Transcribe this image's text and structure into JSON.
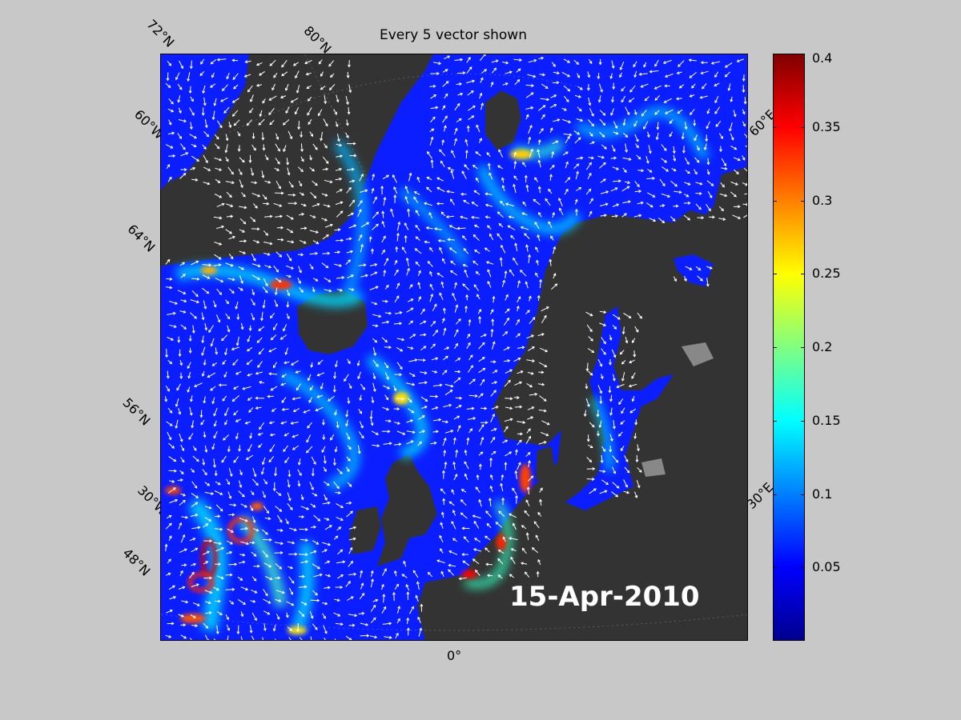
{
  "title": "Every 5 vector shown",
  "date": "15-Apr-2010",
  "lat_labels": [
    "72°N",
    "64°N",
    "56°N",
    "48°N"
  ],
  "lon_labels": [
    "80°N",
    "60°W",
    "30°W",
    "0°",
    "60°E",
    "30°E"
  ],
  "colorbar": {
    "ticks": [
      "0.4",
      "0.35",
      "0.3",
      "0.25",
      "0.2",
      "0.15",
      "0.1",
      "0.05"
    ],
    "values": [
      0.4,
      0.35,
      0.3,
      0.25,
      0.2,
      0.15,
      0.1,
      0.05
    ],
    "min": 0,
    "max": 0.4,
    "colormap": "jet"
  },
  "colors": {
    "land": "#333333",
    "ocean_low": "#0a1eff",
    "ocean_mid": "#00b4ff",
    "ocean_high": "#ff2000",
    "vectors": "#ffffff",
    "background": "#c8c8c8"
  }
}
